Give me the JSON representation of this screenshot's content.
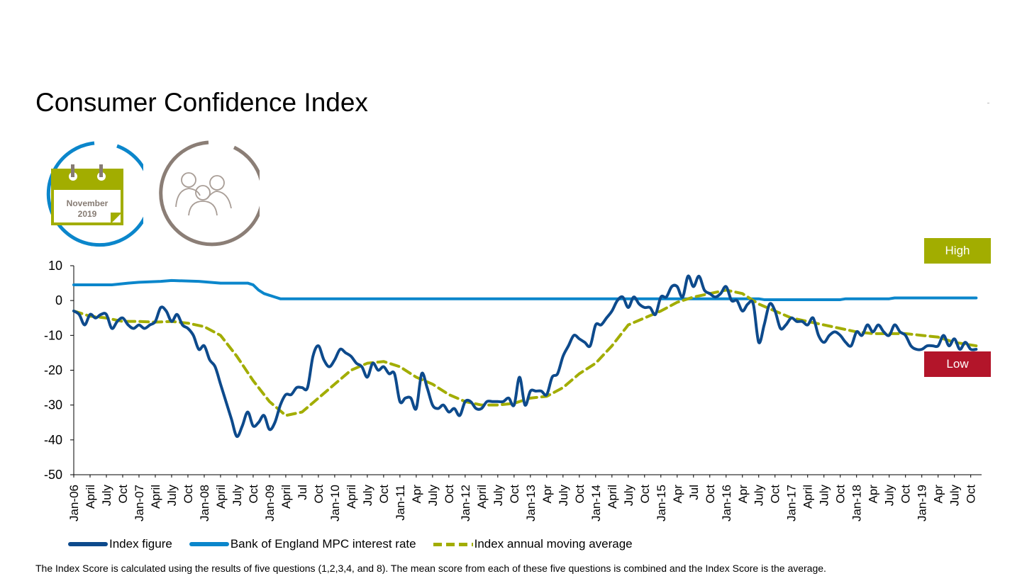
{
  "title": "Consumer Confidence Index",
  "badge": {
    "month": "November",
    "year": "2019",
    "calendar_icon": "calendar-icon",
    "people_icon": "people-group-icon"
  },
  "markers": {
    "high_label": "High",
    "low_label": "Low",
    "high_color": "#a2ad00",
    "low_color": "#b3152a"
  },
  "legend": {
    "index_label": "Index figure",
    "boe_label": "Bank of England MPC interest rate",
    "avg_label": "Index annual moving average"
  },
  "footnote": "The Index Score is calculated using the results of five questions (1,2,3,4, and 8). The mean score from each of these five questions is combined and the Index Score is the average.",
  "colors": {
    "index": "#0d4a8c",
    "boe": "#0b86cb",
    "avg": "#a2ad00",
    "badge_ring": "#0b86cb",
    "people_ring": "#8b7e76"
  },
  "chart_data": {
    "type": "line",
    "ylim": [
      -50,
      10
    ],
    "yticks": [
      10,
      0,
      -10,
      -20,
      -30,
      -40,
      -50
    ],
    "x_range": [
      "2006-01",
      "2019-12"
    ],
    "x_tick_labels": [
      "Jan-06",
      "April",
      "July",
      "Oct",
      "Jan-07",
      "April",
      "July",
      "Oct",
      "Jan-08",
      "April",
      "July",
      "Oct",
      "Jan-09",
      "April",
      "Jul",
      "Oct",
      "Jan-10",
      "April",
      "July",
      "Oct",
      "Jan-11",
      "Apr",
      "July",
      "Oct",
      "Jan-12",
      "April",
      "July",
      "Oct",
      "Jan-13",
      "Apr",
      "July",
      "Oct",
      "Jan-14",
      "April",
      "July",
      "Oct",
      "Jan-15",
      "Apr",
      "Jul",
      "Oct",
      "Jan-16",
      "Apr",
      "July",
      "Oct",
      "Jan-17",
      "April",
      "July",
      "Oct",
      "Jan-18",
      "Apr",
      "July",
      "Oct",
      "Jan-19",
      "Apr",
      "July",
      "Oct"
    ],
    "series": [
      {
        "name": "Index figure",
        "style": "solid",
        "points": [
          [
            "2006-01",
            -3
          ],
          [
            "2006-02",
            -4
          ],
          [
            "2006-03",
            -7
          ],
          [
            "2006-04",
            -4
          ],
          [
            "2006-05",
            -5
          ],
          [
            "2006-06",
            -4
          ],
          [
            "2006-07",
            -4
          ],
          [
            "2006-08",
            -8
          ],
          [
            "2006-09",
            -6
          ],
          [
            "2006-10",
            -5
          ],
          [
            "2006-11",
            -7
          ],
          [
            "2006-12",
            -8
          ],
          [
            "2007-01",
            -7
          ],
          [
            "2007-02",
            -8
          ],
          [
            "2007-03",
            -7
          ],
          [
            "2007-04",
            -6
          ],
          [
            "2007-05",
            -2
          ],
          [
            "2007-06",
            -3
          ],
          [
            "2007-07",
            -6
          ],
          [
            "2007-08",
            -4
          ],
          [
            "2007-09",
            -7
          ],
          [
            "2007-10",
            -8
          ],
          [
            "2007-11",
            -10
          ],
          [
            "2007-12",
            -14
          ],
          [
            "2008-01",
            -13
          ],
          [
            "2008-02",
            -17
          ],
          [
            "2008-03",
            -19
          ],
          [
            "2008-04",
            -24
          ],
          [
            "2008-05",
            -29
          ],
          [
            "2008-06",
            -34
          ],
          [
            "2008-07",
            -39
          ],
          [
            "2008-08",
            -36
          ],
          [
            "2008-09",
            -32
          ],
          [
            "2008-10",
            -36
          ],
          [
            "2008-11",
            -35
          ],
          [
            "2008-12",
            -33
          ],
          [
            "2009-01",
            -37
          ],
          [
            "2009-02",
            -35
          ],
          [
            "2009-03",
            -30
          ],
          [
            "2009-04",
            -27
          ],
          [
            "2009-05",
            -27
          ],
          [
            "2009-06",
            -25
          ],
          [
            "2009-07",
            -25
          ],
          [
            "2009-08",
            -25
          ],
          [
            "2009-09",
            -16
          ],
          [
            "2009-10",
            -13
          ],
          [
            "2009-11",
            -17
          ],
          [
            "2009-12",
            -19
          ],
          [
            "2010-01",
            -17
          ],
          [
            "2010-02",
            -14
          ],
          [
            "2010-03",
            -15
          ],
          [
            "2010-04",
            -16
          ],
          [
            "2010-05",
            -18
          ],
          [
            "2010-06",
            -19
          ],
          [
            "2010-07",
            -22
          ],
          [
            "2010-08",
            -18
          ],
          [
            "2010-09",
            -20
          ],
          [
            "2010-10",
            -19
          ],
          [
            "2010-11",
            -21
          ],
          [
            "2010-12",
            -21
          ],
          [
            "2011-01",
            -29
          ],
          [
            "2011-02",
            -28
          ],
          [
            "2011-03",
            -28
          ],
          [
            "2011-04",
            -31
          ],
          [
            "2011-05",
            -21
          ],
          [
            "2011-06",
            -25
          ],
          [
            "2011-07",
            -30
          ],
          [
            "2011-08",
            -31
          ],
          [
            "2011-09",
            -30
          ],
          [
            "2011-10",
            -32
          ],
          [
            "2011-11",
            -31
          ],
          [
            "2011-12",
            -33
          ],
          [
            "2012-01",
            -29
          ],
          [
            "2012-02",
            -29
          ],
          [
            "2012-03",
            -31
          ],
          [
            "2012-04",
            -31
          ],
          [
            "2012-05",
            -29
          ],
          [
            "2012-06",
            -29
          ],
          [
            "2012-07",
            -29
          ],
          [
            "2012-08",
            -29
          ],
          [
            "2012-09",
            -28
          ],
          [
            "2012-10",
            -30
          ],
          [
            "2012-11",
            -22
          ],
          [
            "2012-12",
            -30
          ],
          [
            "2013-01",
            -26
          ],
          [
            "2013-02",
            -26
          ],
          [
            "2013-03",
            -26
          ],
          [
            "2013-04",
            -27
          ],
          [
            "2013-05",
            -22
          ],
          [
            "2013-06",
            -21
          ],
          [
            "2013-07",
            -16
          ],
          [
            "2013-08",
            -13
          ],
          [
            "2013-09",
            -10
          ],
          [
            "2013-10",
            -11
          ],
          [
            "2013-11",
            -12
          ],
          [
            "2013-12",
            -13
          ],
          [
            "2014-01",
            -7
          ],
          [
            "2014-02",
            -7
          ],
          [
            "2014-03",
            -5
          ],
          [
            "2014-04",
            -3
          ],
          [
            "2014-05",
            0
          ],
          [
            "2014-06",
            1
          ],
          [
            "2014-07",
            -2
          ],
          [
            "2014-08",
            1
          ],
          [
            "2014-09",
            -1
          ],
          [
            "2014-10",
            -2
          ],
          [
            "2014-11",
            -2
          ],
          [
            "2014-12",
            -4
          ],
          [
            "2015-01",
            1
          ],
          [
            "2015-02",
            1
          ],
          [
            "2015-03",
            4
          ],
          [
            "2015-04",
            4
          ],
          [
            "2015-05",
            1
          ],
          [
            "2015-06",
            7
          ],
          [
            "2015-07",
            4
          ],
          [
            "2015-08",
            7
          ],
          [
            "2015-09",
            3
          ],
          [
            "2015-10",
            2
          ],
          [
            "2015-11",
            1
          ],
          [
            "2015-12",
            2
          ],
          [
            "2016-01",
            4
          ],
          [
            "2016-02",
            0
          ],
          [
            "2016-03",
            0
          ],
          [
            "2016-04",
            -3
          ],
          [
            "2016-05",
            -1
          ],
          [
            "2016-06",
            -1
          ],
          [
            "2016-07",
            -12
          ],
          [
            "2016-08",
            -7
          ],
          [
            "2016-09",
            -1
          ],
          [
            "2016-10",
            -3
          ],
          [
            "2016-11",
            -8
          ],
          [
            "2016-12",
            -7
          ],
          [
            "2017-01",
            -5
          ],
          [
            "2017-02",
            -6
          ],
          [
            "2017-03",
            -6
          ],
          [
            "2017-04",
            -7
          ],
          [
            "2017-05",
            -5
          ],
          [
            "2017-06",
            -10
          ],
          [
            "2017-07",
            -12
          ],
          [
            "2017-08",
            -10
          ],
          [
            "2017-09",
            -9
          ],
          [
            "2017-10",
            -10
          ],
          [
            "2017-11",
            -12
          ],
          [
            "2017-12",
            -13
          ],
          [
            "2018-01",
            -9
          ],
          [
            "2018-02",
            -10
          ],
          [
            "2018-03",
            -7
          ],
          [
            "2018-04",
            -9
          ],
          [
            "2018-05",
            -7
          ],
          [
            "2018-06",
            -9
          ],
          [
            "2018-07",
            -10
          ],
          [
            "2018-08",
            -7
          ],
          [
            "2018-09",
            -9
          ],
          [
            "2018-10",
            -10
          ],
          [
            "2018-11",
            -13
          ],
          [
            "2018-12",
            -14
          ],
          [
            "2019-01",
            -14
          ],
          [
            "2019-02",
            -13
          ],
          [
            "2019-03",
            -13
          ],
          [
            "2019-04",
            -13
          ],
          [
            "2019-05",
            -10
          ],
          [
            "2019-06",
            -13
          ],
          [
            "2019-07",
            -11
          ],
          [
            "2019-08",
            -14
          ],
          [
            "2019-09",
            -12
          ],
          [
            "2019-10",
            -14
          ],
          [
            "2019-11",
            -14
          ]
        ]
      },
      {
        "name": "Bank of England MPC interest rate",
        "style": "solid",
        "points": [
          [
            "2006-01",
            4.5
          ],
          [
            "2006-08",
            4.5
          ],
          [
            "2006-11",
            5
          ],
          [
            "2007-01",
            5.25
          ],
          [
            "2007-05",
            5.5
          ],
          [
            "2007-07",
            5.75
          ],
          [
            "2007-12",
            5.5
          ],
          [
            "2008-02",
            5.25
          ],
          [
            "2008-04",
            5
          ],
          [
            "2008-09",
            5
          ],
          [
            "2008-10",
            4.5
          ],
          [
            "2008-11",
            3
          ],
          [
            "2008-12",
            2
          ],
          [
            "2009-01",
            1.5
          ],
          [
            "2009-02",
            1
          ],
          [
            "2009-03",
            0.5
          ],
          [
            "2016-07",
            0.5
          ],
          [
            "2016-08",
            0.25
          ],
          [
            "2017-10",
            0.25
          ],
          [
            "2017-11",
            0.5
          ],
          [
            "2018-07",
            0.5
          ],
          [
            "2018-08",
            0.75
          ],
          [
            "2019-11",
            0.75
          ]
        ]
      },
      {
        "name": "Index annual moving average",
        "style": "dashed",
        "points": [
          [
            "2006-01",
            -3
          ],
          [
            "2006-04",
            -4.5
          ],
          [
            "2006-07",
            -5
          ],
          [
            "2006-10",
            -6
          ],
          [
            "2007-01",
            -6
          ],
          [
            "2007-04",
            -6.2
          ],
          [
            "2007-07",
            -6
          ],
          [
            "2007-10",
            -6.5
          ],
          [
            "2008-01",
            -7.5
          ],
          [
            "2008-04",
            -10
          ],
          [
            "2008-07",
            -16
          ],
          [
            "2008-10",
            -23
          ],
          [
            "2009-01",
            -29
          ],
          [
            "2009-04",
            -33
          ],
          [
            "2009-07",
            -32
          ],
          [
            "2009-10",
            -28
          ],
          [
            "2010-01",
            -24
          ],
          [
            "2010-04",
            -20
          ],
          [
            "2010-07",
            -18
          ],
          [
            "2010-10",
            -17.5
          ],
          [
            "2011-01",
            -19
          ],
          [
            "2011-04",
            -22
          ],
          [
            "2011-07",
            -24
          ],
          [
            "2011-10",
            -27
          ],
          [
            "2012-01",
            -29
          ],
          [
            "2012-04",
            -30
          ],
          [
            "2012-07",
            -30
          ],
          [
            "2012-10",
            -29.5
          ],
          [
            "2013-01",
            -28
          ],
          [
            "2013-04",
            -27.5
          ],
          [
            "2013-07",
            -25
          ],
          [
            "2013-10",
            -21
          ],
          [
            "2014-01",
            -18
          ],
          [
            "2014-04",
            -13
          ],
          [
            "2014-07",
            -7
          ],
          [
            "2014-10",
            -5
          ],
          [
            "2015-01",
            -3
          ],
          [
            "2015-04",
            -0.5
          ],
          [
            "2015-07",
            1
          ],
          [
            "2015-10",
            2
          ],
          [
            "2016-01",
            3
          ],
          [
            "2016-04",
            2
          ],
          [
            "2016-07",
            -1
          ],
          [
            "2016-10",
            -3
          ],
          [
            "2017-01",
            -5
          ],
          [
            "2017-04",
            -6
          ],
          [
            "2017-07",
            -7
          ],
          [
            "2017-10",
            -8
          ],
          [
            "2018-01",
            -9
          ],
          [
            "2018-04",
            -9.5
          ],
          [
            "2018-07",
            -9.5
          ],
          [
            "2018-10",
            -9.5
          ],
          [
            "2019-01",
            -10
          ],
          [
            "2019-04",
            -10.5
          ],
          [
            "2019-07",
            -12
          ],
          [
            "2019-11",
            -13
          ]
        ]
      }
    ]
  }
}
